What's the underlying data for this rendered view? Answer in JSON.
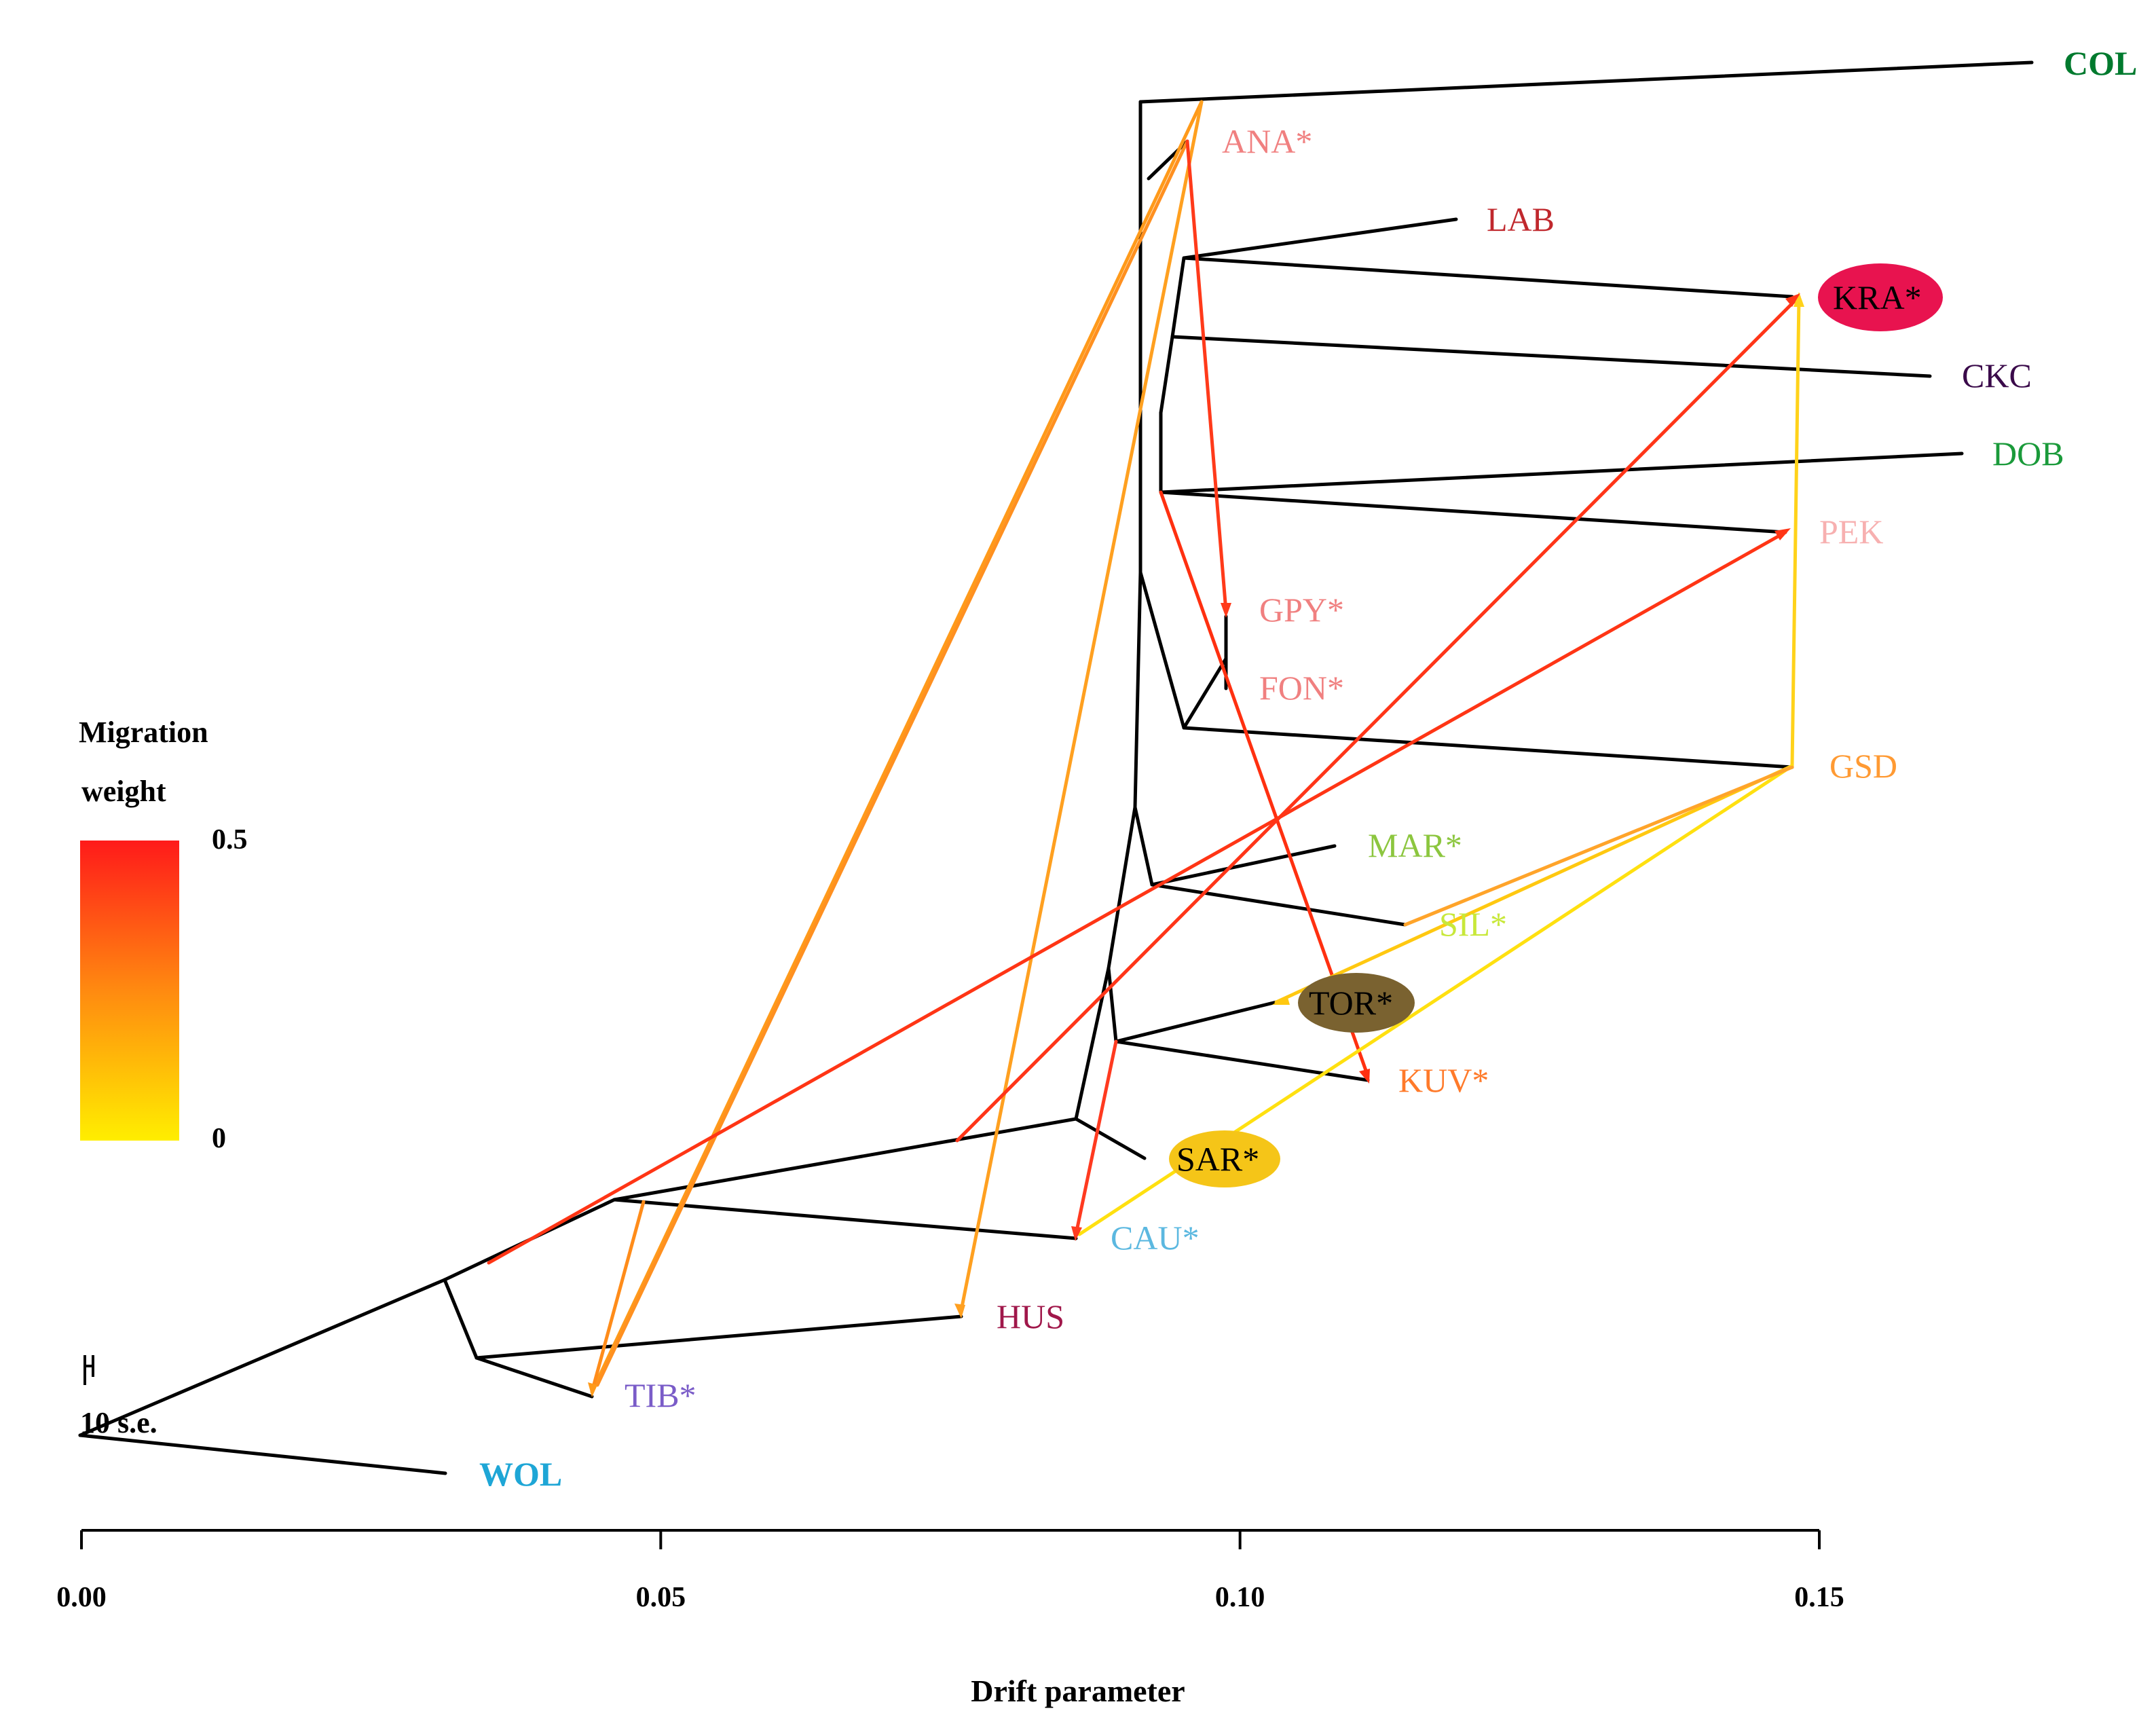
{
  "chart_data": {
    "type": "tree",
    "xlabel": "Drift parameter",
    "xlim": [
      0,
      0.15
    ],
    "xticks": [
      {
        "value": 0.0,
        "label": "0.00"
      },
      {
        "value": 0.05,
        "label": "0.05"
      },
      {
        "value": 0.1,
        "label": "0.10"
      },
      {
        "value": 0.15,
        "label": "0.15"
      }
    ],
    "scale_bar_label": "10 s.e.",
    "legend": {
      "title_line1": "Migration",
      "title_line2": "weight",
      "max_label": "0.5",
      "min_label": "0",
      "max_color": "#ff1a1a",
      "min_color": "#ffee00"
    },
    "leaves": [
      {
        "name": "COL",
        "drift": 0.17,
        "color": "#007a2e",
        "bold": true
      },
      {
        "name": "ANA*",
        "drift": 0.096,
        "color": "#f08080",
        "bold": false
      },
      {
        "name": "LAB",
        "drift": 0.119,
        "color": "#c0282d",
        "bold": false
      },
      {
        "name": "KRA*",
        "drift": 0.148,
        "color": "#000000",
        "bold": false,
        "highlight": "#e8134f"
      },
      {
        "name": "CKC",
        "drift": 0.159,
        "color": "#3a0a4a",
        "bold": false
      },
      {
        "name": "DOB",
        "drift": 0.162,
        "color": "#1a9a3a",
        "bold": false
      },
      {
        "name": "PEK",
        "drift": 0.147,
        "color": "#f7b0b0",
        "bold": false
      },
      {
        "name": "GPY*",
        "drift": 0.099,
        "color": "#f08080",
        "bold": false
      },
      {
        "name": "FON*",
        "drift": 0.099,
        "color": "#f08080",
        "bold": false
      },
      {
        "name": "GSD",
        "drift": 0.147,
        "color": "#ff9a33",
        "bold": false
      },
      {
        "name": "MAR*",
        "drift": 0.108,
        "color": "#8cc63f",
        "bold": false
      },
      {
        "name": "SIL*",
        "drift": 0.114,
        "color": "#c8e83a",
        "bold": false
      },
      {
        "name": "TOR*",
        "drift": 0.103,
        "color": "#000000",
        "bold": false,
        "highlight": "#7a6230"
      },
      {
        "name": "KUV*",
        "drift": 0.111,
        "color": "#ff7a2a",
        "bold": false
      },
      {
        "name": "SAR*",
        "drift": 0.09,
        "color": "#000000",
        "bold": false,
        "highlight": "#f5c518"
      },
      {
        "name": "CAU*",
        "drift": 0.086,
        "color": "#5bb8e0",
        "bold": false
      },
      {
        "name": "HUS",
        "drift": 0.076,
        "color": "#a0174a",
        "bold": false
      },
      {
        "name": "TIB*",
        "drift": 0.044,
        "color": "#7a5cc8",
        "bold": false
      },
      {
        "name": "WOL",
        "drift": 0.031,
        "color": "#1ea6d6",
        "bold": true
      }
    ],
    "migration_edges": [
      {
        "from": "TIB* branch",
        "to": "ANA*",
        "weight": 0.25
      },
      {
        "from": "ANA*",
        "to": "TIB*",
        "weight": 0.28
      },
      {
        "from": "COL branch",
        "to": "HUS",
        "weight": 0.3
      },
      {
        "from": "TIB* branch",
        "to": "ANA*",
        "weight": 0.3
      },
      {
        "from": "ANA* branch",
        "to": "GPY*",
        "weight": 0.45
      },
      {
        "from": "DOB branch",
        "to": "KUV*",
        "weight": 0.45
      },
      {
        "from": "HUS-CAU branch",
        "to": "KRA*",
        "weight": 0.45
      },
      {
        "from": "root branch",
        "to": "PEK",
        "weight": 0.48
      },
      {
        "from": "TOR branch",
        "to": "CAU*",
        "weight": 0.45
      },
      {
        "from": "GSD",
        "to": "KRA*",
        "weight": 0.05
      },
      {
        "from": "GSD",
        "to": "TOR*",
        "weight": 0.12
      },
      {
        "from": "GSD",
        "to": "CAU*",
        "weight": 0.02
      },
      {
        "from": "GSD-SIL",
        "to": "GSD",
        "weight": 0.2
      }
    ]
  }
}
